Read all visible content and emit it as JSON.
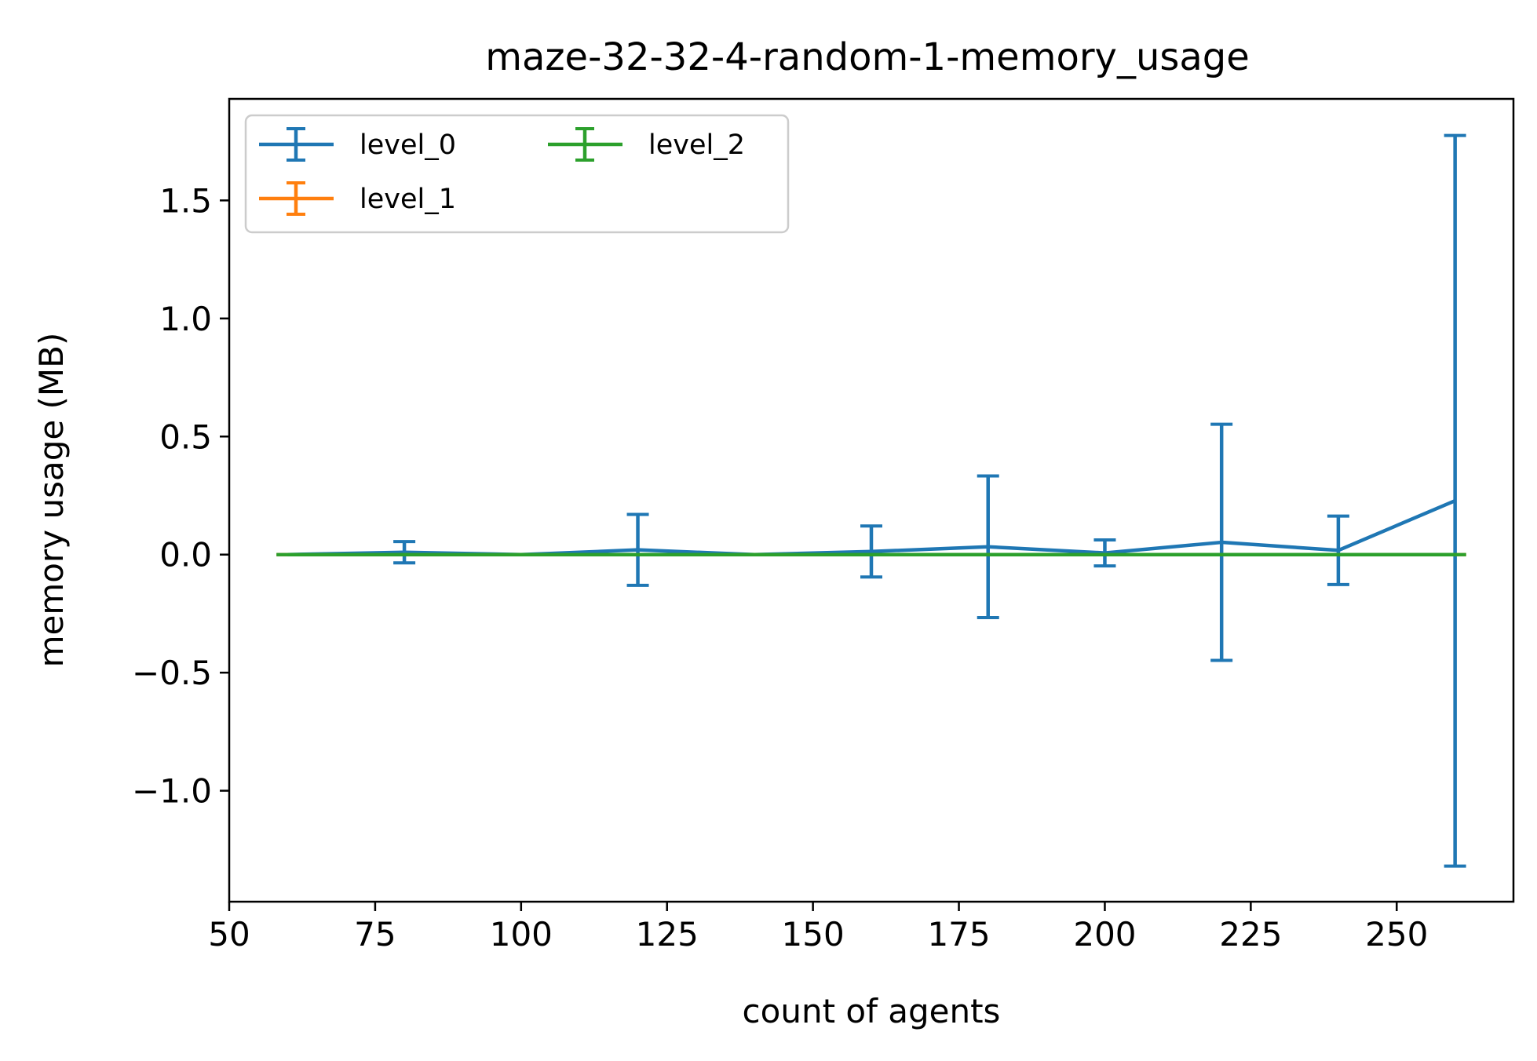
{
  "chart_data": {
    "type": "line",
    "title": "maze-32-32-4-random-1-memory_usage",
    "xlabel": "count of agents",
    "ylabel": "memory usage (MB)",
    "xlim": [
      50,
      270
    ],
    "ylim": [
      -1.47,
      1.93
    ],
    "xticks": [
      50,
      75,
      100,
      125,
      150,
      175,
      200,
      225,
      250
    ],
    "xtick_labels": [
      "50",
      "75",
      "100",
      "125",
      "150",
      "175",
      "200",
      "225",
      "250"
    ],
    "yticks": [
      -1.0,
      -0.5,
      0.0,
      0.5,
      1.0,
      1.5
    ],
    "ytick_labels": [
      "−1.0",
      "−0.5",
      "0.0",
      "0.5",
      "1.0",
      "1.5"
    ],
    "grid": false,
    "legend": {
      "position": "top-left",
      "columns": 2
    },
    "series": [
      {
        "name": "level_0",
        "color": "#1f77b4",
        "x": [
          60,
          80,
          100,
          120,
          140,
          160,
          180,
          200,
          220,
          240,
          260
        ],
        "y": [
          0.0,
          0.01,
          0.0,
          0.02,
          0.0,
          0.013,
          0.033,
          0.007,
          0.052,
          0.018,
          0.228
        ],
        "err": [
          0.0,
          0.045,
          0.0,
          0.15,
          0.0,
          0.108,
          0.3,
          0.055,
          0.5,
          0.145,
          1.547
        ]
      },
      {
        "name": "level_1",
        "color": "#ff7f0e",
        "x": [
          60,
          80,
          100,
          120,
          140,
          160,
          180,
          200,
          220,
          240,
          260
        ],
        "y": [
          0,
          0,
          0,
          0,
          0,
          0,
          0,
          0,
          0,
          0,
          0
        ],
        "err": [
          0,
          0,
          0,
          0,
          0,
          0,
          0,
          0,
          0,
          0,
          0
        ]
      },
      {
        "name": "level_2",
        "color": "#2ca02c",
        "x": [
          60,
          80,
          100,
          120,
          140,
          160,
          180,
          200,
          220,
          240,
          260
        ],
        "y": [
          0,
          0,
          0,
          0,
          0,
          0,
          0,
          0,
          0,
          0,
          0
        ],
        "err": [
          0,
          0,
          0,
          0,
          0,
          0,
          0,
          0,
          0,
          0,
          0
        ]
      }
    ]
  }
}
